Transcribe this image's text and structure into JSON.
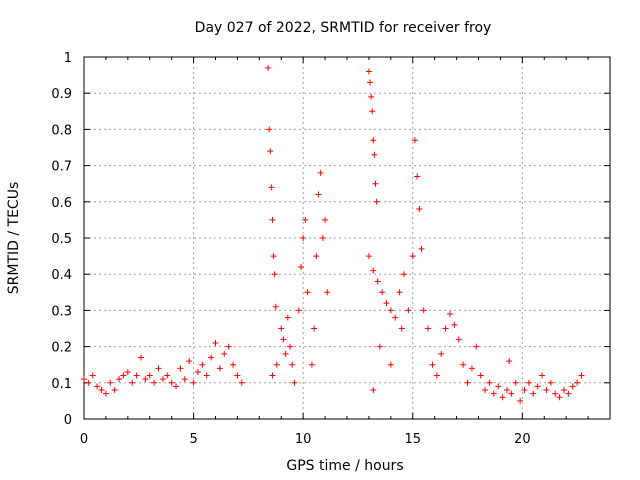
{
  "chart_data": {
    "type": "scatter",
    "title": "Day 027 of 2022, SRMTID for receiver froy",
    "xlabel": "GPS time / hours",
    "ylabel": "SRMTID / TECUs",
    "xlim": [
      0,
      24
    ],
    "ylim": [
      0,
      1
    ],
    "x_ticks": [
      0,
      5,
      10,
      15,
      20
    ],
    "y_ticks": [
      0,
      0.1,
      0.2,
      0.3,
      0.4,
      0.5,
      0.6,
      0.7,
      0.8,
      0.9,
      1
    ],
    "x_tick_labels": [
      "0",
      "5",
      "10",
      "15",
      "20"
    ],
    "y_tick_labels": [
      "0",
      "0.1",
      "0.2",
      "0.3",
      "0.4",
      "0.5",
      "0.6",
      "0.7",
      "0.8",
      "0.9",
      "1"
    ],
    "grid": true,
    "marker": "+",
    "color": "#ff0000",
    "series": [
      {
        "name": "SRMTID",
        "points": [
          [
            0.0,
            0.11
          ],
          [
            0.2,
            0.1
          ],
          [
            0.4,
            0.12
          ],
          [
            0.6,
            0.09
          ],
          [
            0.8,
            0.08
          ],
          [
            1.0,
            0.07
          ],
          [
            1.2,
            0.1
          ],
          [
            1.4,
            0.08
          ],
          [
            1.6,
            0.11
          ],
          [
            1.8,
            0.12
          ],
          [
            2.0,
            0.13
          ],
          [
            2.2,
            0.1
          ],
          [
            2.4,
            0.12
          ],
          [
            2.6,
            0.17
          ],
          [
            2.8,
            0.11
          ],
          [
            3.0,
            0.12
          ],
          [
            3.2,
            0.1
          ],
          [
            3.4,
            0.14
          ],
          [
            3.6,
            0.11
          ],
          [
            3.8,
            0.12
          ],
          [
            4.0,
            0.1
          ],
          [
            4.2,
            0.09
          ],
          [
            4.4,
            0.14
          ],
          [
            4.6,
            0.11
          ],
          [
            4.8,
            0.16
          ],
          [
            5.0,
            0.1
          ],
          [
            5.2,
            0.13
          ],
          [
            5.4,
            0.15
          ],
          [
            5.6,
            0.12
          ],
          [
            5.8,
            0.17
          ],
          [
            6.0,
            0.21
          ],
          [
            6.2,
            0.14
          ],
          [
            6.4,
            0.18
          ],
          [
            6.6,
            0.2
          ],
          [
            6.8,
            0.15
          ],
          [
            7.0,
            0.12
          ],
          [
            7.2,
            0.1
          ],
          [
            8.4,
            0.97
          ],
          [
            8.45,
            0.8
          ],
          [
            8.5,
            0.74
          ],
          [
            8.55,
            0.64
          ],
          [
            8.6,
            0.55
          ],
          [
            8.65,
            0.45
          ],
          [
            8.7,
            0.4
          ],
          [
            8.75,
            0.31
          ],
          [
            8.6,
            0.12
          ],
          [
            8.8,
            0.15
          ],
          [
            9.0,
            0.25
          ],
          [
            9.1,
            0.22
          ],
          [
            9.2,
            0.18
          ],
          [
            9.3,
            0.28
          ],
          [
            9.4,
            0.2
          ],
          [
            9.5,
            0.15
          ],
          [
            9.6,
            0.1
          ],
          [
            9.8,
            0.3
          ],
          [
            9.9,
            0.42
          ],
          [
            10.0,
            0.5
          ],
          [
            10.1,
            0.55
          ],
          [
            10.2,
            0.35
          ],
          [
            10.4,
            0.15
          ],
          [
            10.5,
            0.25
          ],
          [
            10.6,
            0.45
          ],
          [
            10.7,
            0.62
          ],
          [
            10.8,
            0.68
          ],
          [
            10.9,
            0.5
          ],
          [
            11.0,
            0.55
          ],
          [
            11.1,
            0.35
          ],
          [
            13.0,
            0.96
          ],
          [
            13.05,
            0.93
          ],
          [
            13.1,
            0.89
          ],
          [
            13.15,
            0.85
          ],
          [
            13.2,
            0.77
          ],
          [
            13.25,
            0.73
          ],
          [
            13.3,
            0.65
          ],
          [
            13.35,
            0.6
          ],
          [
            13.0,
            0.45
          ],
          [
            13.2,
            0.41
          ],
          [
            13.4,
            0.38
          ],
          [
            13.6,
            0.35
          ],
          [
            13.8,
            0.32
          ],
          [
            14.0,
            0.3
          ],
          [
            14.2,
            0.28
          ],
          [
            14.4,
            0.35
          ],
          [
            14.6,
            0.4
          ],
          [
            14.8,
            0.3
          ],
          [
            15.0,
            0.45
          ],
          [
            15.1,
            0.77
          ],
          [
            15.2,
            0.67
          ],
          [
            15.3,
            0.58
          ],
          [
            15.4,
            0.47
          ],
          [
            13.2,
            0.08
          ],
          [
            13.5,
            0.2
          ],
          [
            14.0,
            0.15
          ],
          [
            14.5,
            0.25
          ],
          [
            15.5,
            0.3
          ],
          [
            15.7,
            0.25
          ],
          [
            15.9,
            0.15
          ],
          [
            16.1,
            0.12
          ],
          [
            16.3,
            0.18
          ],
          [
            16.5,
            0.25
          ],
          [
            16.7,
            0.29
          ],
          [
            16.9,
            0.26
          ],
          [
            17.1,
            0.22
          ],
          [
            17.3,
            0.15
          ],
          [
            17.5,
            0.1
          ],
          [
            17.7,
            0.14
          ],
          [
            17.9,
            0.2
          ],
          [
            18.1,
            0.12
          ],
          [
            18.3,
            0.08
          ],
          [
            18.5,
            0.1
          ],
          [
            18.7,
            0.07
          ],
          [
            18.9,
            0.09
          ],
          [
            19.1,
            0.06
          ],
          [
            19.3,
            0.08
          ],
          [
            19.5,
            0.07
          ],
          [
            19.7,
            0.1
          ],
          [
            19.9,
            0.05
          ],
          [
            20.1,
            0.08
          ],
          [
            20.3,
            0.1
          ],
          [
            20.5,
            0.07
          ],
          [
            20.7,
            0.09
          ],
          [
            20.9,
            0.12
          ],
          [
            21.1,
            0.08
          ],
          [
            21.3,
            0.1
          ],
          [
            21.5,
            0.07
          ],
          [
            21.7,
            0.06
          ],
          [
            21.9,
            0.08
          ],
          [
            22.1,
            0.07
          ],
          [
            22.3,
            0.09
          ],
          [
            22.5,
            0.1
          ],
          [
            22.7,
            0.12
          ],
          [
            19.4,
            0.16
          ]
        ]
      }
    ]
  }
}
